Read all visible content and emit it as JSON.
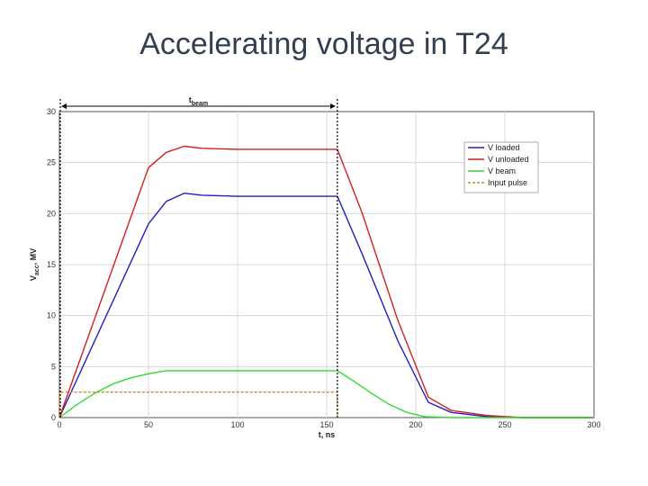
{
  "slide": {
    "title": "Accelerating voltage in T24"
  },
  "chart_data": {
    "type": "line",
    "xlabel": "t, ns",
    "ylabel": "V",
    "ylabel_sub": "acc",
    "ylabel_unit": ", MV",
    "xlim": [
      0,
      300
    ],
    "ylim": [
      0,
      30
    ],
    "xticks": [
      0,
      50,
      100,
      150,
      200,
      250,
      300
    ],
    "yticks": [
      0,
      5,
      10,
      15,
      20,
      25,
      30
    ],
    "grid": true,
    "legend_position": "top-right",
    "annotation": {
      "text": "t",
      "sub": "beam",
      "x_start": 0,
      "x_end": 156
    },
    "series": [
      {
        "name": "V loaded",
        "color": "#1f1fbf",
        "dash": false,
        "x": [
          0,
          50,
          60,
          70,
          80,
          100,
          130,
          156,
          170,
          190,
          207,
          220,
          240,
          260,
          300
        ],
        "y": [
          0,
          19,
          21.2,
          22,
          21.8,
          21.7,
          21.7,
          21.7,
          16,
          7.5,
          1.5,
          0.5,
          0.1,
          0,
          0
        ]
      },
      {
        "name": "V unloaded",
        "color": "#d11f1f",
        "dash": false,
        "x": [
          0,
          50,
          60,
          70,
          80,
          100,
          130,
          156,
          170,
          190,
          207,
          220,
          240,
          260,
          300
        ],
        "y": [
          0,
          24.5,
          26,
          26.6,
          26.4,
          26.3,
          26.3,
          26.3,
          20,
          9.5,
          2,
          0.7,
          0.2,
          0,
          0
        ]
      },
      {
        "name": "V beam",
        "color": "#2fdc2f",
        "dash": false,
        "x": [
          0,
          10,
          20,
          30,
          40,
          50,
          60,
          80,
          120,
          156,
          165,
          175,
          185,
          195,
          205,
          220,
          300
        ],
        "y": [
          0,
          1.3,
          2.4,
          3.3,
          3.9,
          4.3,
          4.6,
          4.6,
          4.6,
          4.6,
          3.6,
          2.4,
          1.3,
          0.5,
          0.1,
          0,
          0
        ]
      },
      {
        "name": "Input pulse",
        "color": "#c88a2a",
        "dash": true,
        "x": [
          0,
          0,
          156,
          156
        ],
        "y": [
          0,
          2.5,
          2.5,
          0
        ]
      }
    ]
  }
}
